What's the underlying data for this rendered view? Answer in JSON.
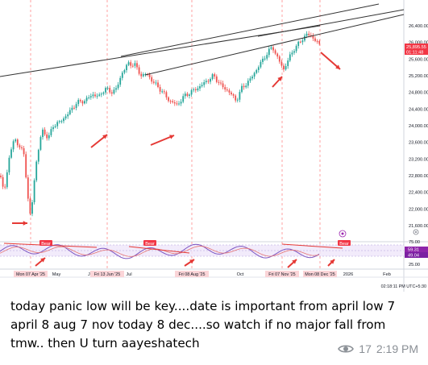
{
  "price_axis_labels": [
    "26,400.00",
    "26,000.00",
    "25,600.00",
    "25,200.00",
    "24,800.00",
    "24,400.00",
    "24,000.00",
    "23,600.00",
    "23,200.00",
    "22,800.00",
    "22,400.00",
    "22,000.00",
    "21,600.00"
  ],
  "price_badge": {
    "price": "25,895.55",
    "countdown": "01:11:48",
    "color": "#f23645"
  },
  "rsi_axis_labels": [
    "75.00",
    "50.00",
    "25.00"
  ],
  "rsi_badges": {
    "rsi": "59.31",
    "signal": "49.04",
    "rsi_color": "#8e24aa",
    "signal_color": "#7b1fa2"
  },
  "date_highlights": [
    "Mon 07 Apr '25",
    "Fri 13 Jun '25",
    "Fri 08 Aug '25",
    "Fri 07 Nov '25",
    "Mon 08 Dec '25"
  ],
  "month_labels": [
    "May",
    "Ju",
    "Jul",
    "Sep",
    "Oct",
    "2026",
    "Feb"
  ],
  "bear_labels": [
    "Bear",
    "Bear",
    "Bear"
  ],
  "timestamp": "02:18:11 PM UTC+5:30",
  "colors": {
    "up": "#26a69a",
    "down": "#ef5350",
    "arrow": "#e53935",
    "trend": "#333333",
    "rsi_line": "#7e57c2",
    "rsi_band": "#efe6fa"
  },
  "message": {
    "text": "today panic low will be key....date is important from april low 7 april 8 aug 7 nov today 8 dec....so watch if no major fall from tmw.. then U turn aayeshatech",
    "views": "17",
    "time": "2:19 PM"
  }
}
